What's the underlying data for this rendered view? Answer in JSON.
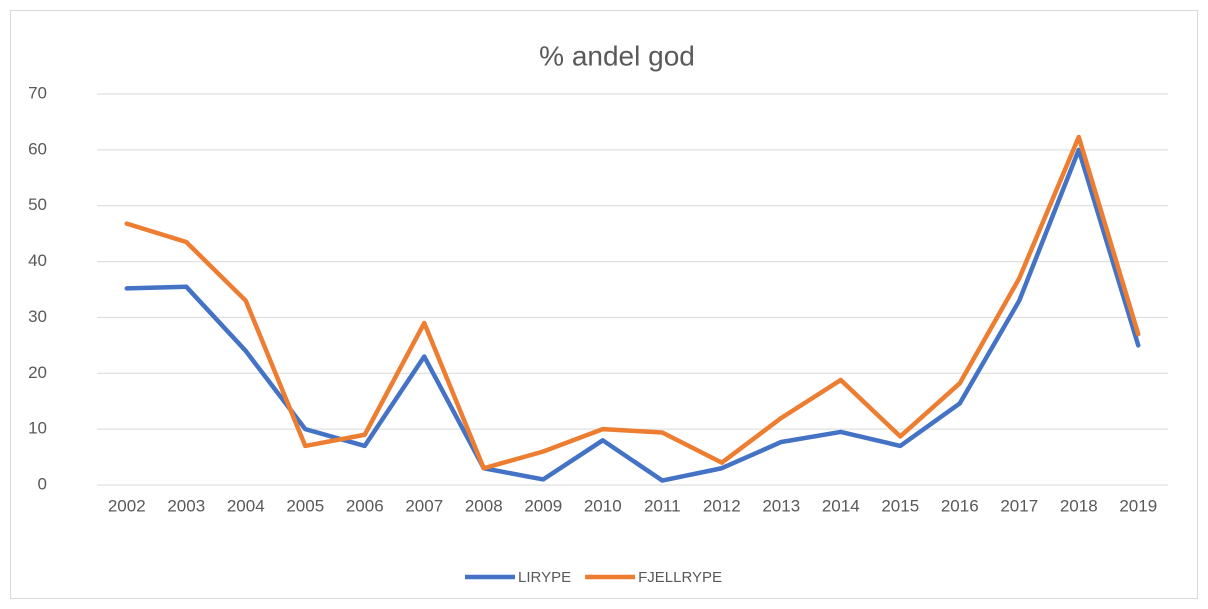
{
  "chart_data": {
    "type": "line",
    "title": "% andel god",
    "categories": [
      "2002",
      "2003",
      "2004",
      "2005",
      "2006",
      "2007",
      "2008",
      "2009",
      "2010",
      "2011",
      "2012",
      "2013",
      "2014",
      "2015",
      "2016",
      "2017",
      "2018",
      "2019"
    ],
    "series": [
      {
        "name": "LIRYPE",
        "color": "#4472c4",
        "values": [
          35.2,
          35.5,
          24,
          10,
          7,
          23,
          3,
          1,
          8,
          0.8,
          3,
          7.7,
          9.5,
          7,
          14.6,
          33,
          60,
          25
        ]
      },
      {
        "name": "FJELLRYPE",
        "color": "#ed7d31",
        "values": [
          46.8,
          43.5,
          33,
          7,
          9,
          29,
          3,
          6,
          10,
          9.4,
          4,
          12,
          18.8,
          8.7,
          18.2,
          37,
          62.3,
          27
        ]
      }
    ],
    "ylim": [
      0,
      70
    ],
    "yticks": [
      0,
      10,
      20,
      30,
      40,
      50,
      60,
      70
    ],
    "grid": true,
    "legend": "bottom"
  }
}
